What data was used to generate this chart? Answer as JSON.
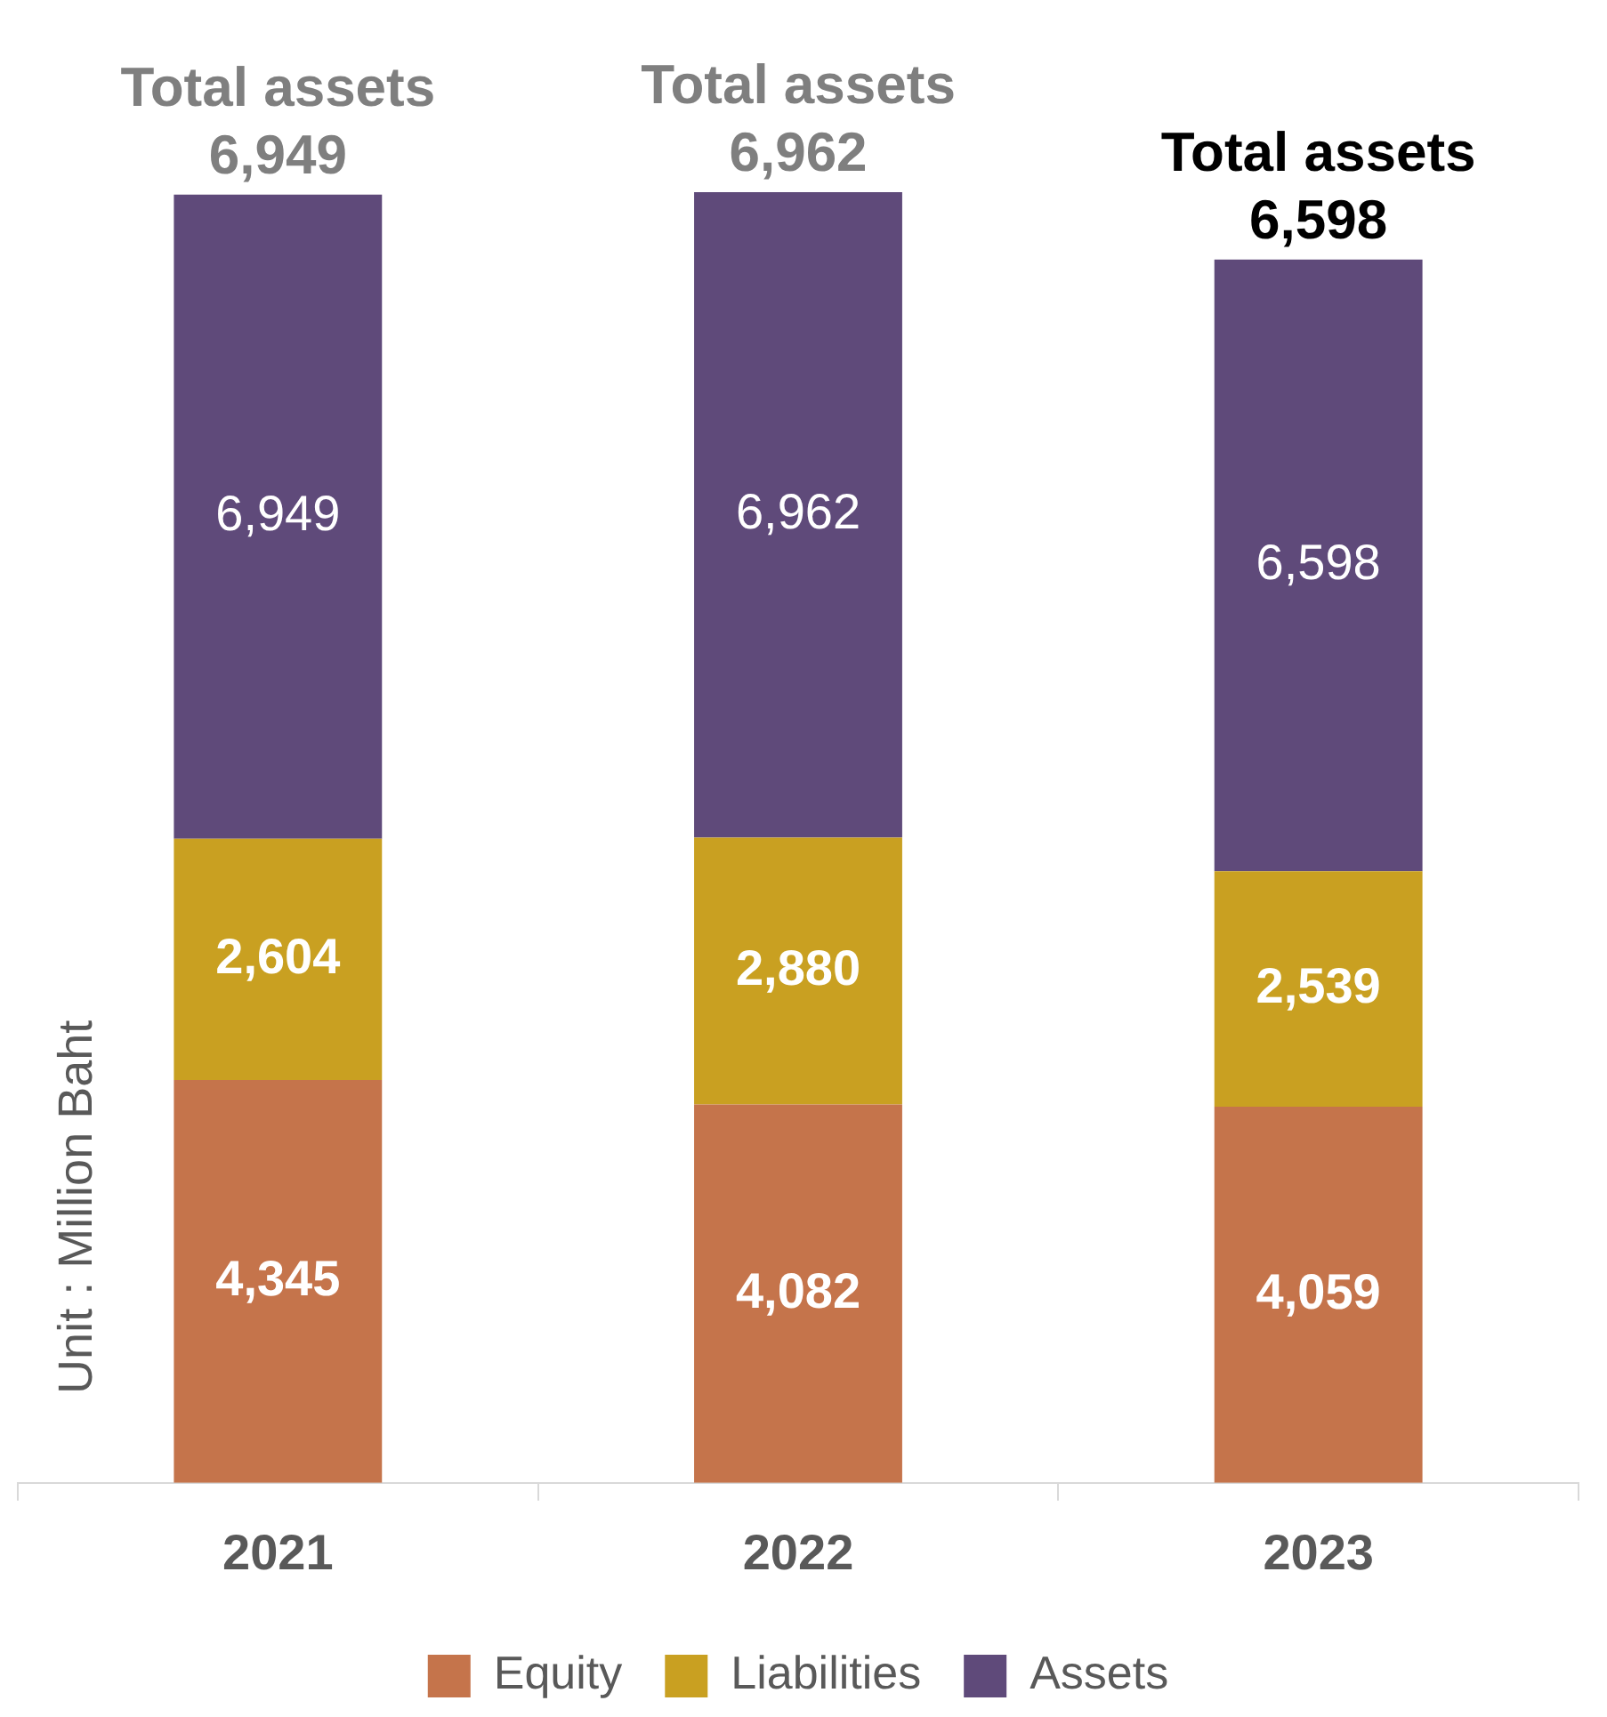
{
  "chart_data": {
    "type": "bar",
    "stacked": true,
    "ylabel": "Unit : Million Baht",
    "categories": [
      "2021",
      "2022",
      "2023"
    ],
    "series": [
      {
        "name": "Equity",
        "color": "#c5744b",
        "values": [
          4345,
          4082,
          4059
        ],
        "value_labels": [
          "4,345",
          "4,082",
          "4,059"
        ]
      },
      {
        "name": "Liabilities",
        "color": "#c9a021",
        "values": [
          2604,
          2880,
          2539
        ],
        "value_labels": [
          "2,604",
          "2,880",
          "2,539"
        ]
      },
      {
        "name": "Assets",
        "color": "#5f4a7a",
        "values": [
          6949,
          6962,
          6598
        ],
        "value_labels": [
          "6,949",
          "6,962",
          "6,598"
        ]
      }
    ],
    "tick_labels": "x",
    "grid": false,
    "legend": "bottom",
    "annotations": [
      {
        "text": "Total assets 6,949",
        "x": "2021",
        "y": 13898
      },
      {
        "text": "Total assets 6,962",
        "x": "2022",
        "y": 13924
      },
      {
        "text": "Total assets 6,598",
        "x": "2023",
        "y": 13196
      }
    ]
  }
}
